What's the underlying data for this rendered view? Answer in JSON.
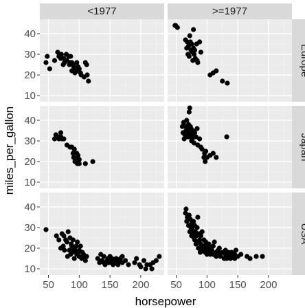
{
  "chart_data": {
    "type": "scatter",
    "xlabel": "horsepower",
    "ylabel": "miles_per_gallon",
    "xlim": [
      36,
      238
    ],
    "ylim": [
      7,
      47
    ],
    "x_ticks": [
      50,
      100,
      150,
      200
    ],
    "y_ticks": [
      10,
      20,
      30,
      40
    ],
    "grid": true,
    "facet_columns": [
      "<1977",
      ">=1977"
    ],
    "facet_rows": [
      "Europe",
      "Japan",
      "USA"
    ],
    "colors": {
      "panel": "#ebebeb",
      "strip": "#d9d9d9",
      "grid_major": "#ffffff",
      "grid_minor": "#f5f5f5",
      "point": "#000000"
    },
    "panels": [
      {
        "column": "<1977",
        "row": "Europe",
        "points": [
          [
            46,
            26
          ],
          [
            48,
            29
          ],
          [
            52,
            23
          ],
          [
            60,
            27
          ],
          [
            65,
            31
          ],
          [
            67,
            29
          ],
          [
            70,
            28
          ],
          [
            71,
            30
          ],
          [
            74,
            25
          ],
          [
            75,
            28
          ],
          [
            76,
            26
          ],
          [
            78,
            27
          ],
          [
            79,
            30
          ],
          [
            80,
            27
          ],
          [
            83,
            29
          ],
          [
            84,
            25
          ],
          [
            85,
            26
          ],
          [
            86,
            29
          ],
          [
            88,
            26
          ],
          [
            88,
            22
          ],
          [
            90,
            25
          ],
          [
            91,
            24
          ],
          [
            93,
            21
          ],
          [
            95,
            23
          ],
          [
            96,
            26
          ],
          [
            97,
            22
          ],
          [
            98,
            24
          ],
          [
            100,
            23
          ],
          [
            102,
            21
          ],
          [
            103,
            20
          ],
          [
            108,
            19
          ],
          [
            110,
            26
          ],
          [
            112,
            25
          ],
          [
            113,
            20
          ],
          [
            115,
            17
          ]
        ]
      },
      {
        "column": ">=1977",
        "row": "Europe",
        "points": [
          [
            48,
            44
          ],
          [
            49,
            44
          ],
          [
            52,
            43
          ],
          [
            65,
            37
          ],
          [
            67,
            33
          ],
          [
            68,
            36
          ],
          [
            69,
            30
          ],
          [
            70,
            34
          ],
          [
            71,
            29
          ],
          [
            73,
            36
          ],
          [
            74,
            32
          ],
          [
            75,
            35
          ],
          [
            76,
            31
          ],
          [
            77,
            27
          ],
          [
            78,
            33
          ],
          [
            79,
            30
          ],
          [
            80,
            32
          ],
          [
            81,
            28
          ],
          [
            83,
            35
          ],
          [
            84,
            27
          ],
          [
            85,
            26
          ],
          [
            88,
            36
          ],
          [
            90,
            31
          ],
          [
            105,
            20
          ],
          [
            110,
            21
          ],
          [
            115,
            22
          ],
          [
            125,
            17
          ],
          [
            133,
            16
          ],
          [
            78,
            42
          ],
          [
            72,
            39
          ]
        ]
      },
      {
        "column": "<1977",
        "row": "Japan",
        "points": [
          [
            60,
            31
          ],
          [
            62,
            33
          ],
          [
            65,
            32
          ],
          [
            67,
            31
          ],
          [
            70,
            32
          ],
          [
            70,
            34
          ],
          [
            72,
            31
          ],
          [
            75,
            31
          ],
          [
            80,
            28
          ],
          [
            85,
            27
          ],
          [
            88,
            27
          ],
          [
            90,
            24
          ],
          [
            91,
            22
          ],
          [
            92,
            26
          ],
          [
            93,
            20
          ],
          [
            95,
            21
          ],
          [
            96,
            24
          ],
          [
            97,
            19
          ],
          [
            98,
            23
          ],
          [
            100,
            19
          ],
          [
            100,
            21
          ],
          [
            110,
            19
          ],
          [
            122,
            20
          ]
        ]
      },
      {
        "column": ">=1977",
        "row": "Japan",
        "points": [
          [
            60,
            37
          ],
          [
            61,
            34
          ],
          [
            62,
            39
          ],
          [
            63,
            31
          ],
          [
            64,
            33
          ],
          [
            65,
            37
          ],
          [
            66,
            35
          ],
          [
            67,
            40
          ],
          [
            68,
            36
          ],
          [
            69,
            32
          ],
          [
            70,
            38
          ],
          [
            70,
            34
          ],
          [
            71,
            44
          ],
          [
            72,
            32
          ],
          [
            73,
            37
          ],
          [
            74,
            36
          ],
          [
            75,
            30
          ],
          [
            75,
            33
          ],
          [
            76,
            31
          ],
          [
            77,
            35
          ],
          [
            78,
            33
          ],
          [
            79,
            29
          ],
          [
            80,
            34
          ],
          [
            82,
            32
          ],
          [
            84,
            36
          ],
          [
            85,
            28
          ],
          [
            88,
            31
          ],
          [
            90,
            27
          ],
          [
            92,
            26
          ],
          [
            95,
            22
          ],
          [
            96,
            24
          ],
          [
            97,
            20
          ],
          [
            98,
            25
          ],
          [
            100,
            22
          ],
          [
            105,
            23
          ],
          [
            110,
            24
          ],
          [
            115,
            22
          ],
          [
            132,
            32
          ],
          [
            72,
            46
          ]
        ]
      },
      {
        "column": "<1977",
        "row": "USA",
        "points": [
          [
            46,
            29
          ],
          [
            63,
            26
          ],
          [
            67,
            24
          ],
          [
            70,
            20
          ],
          [
            72,
            27
          ],
          [
            74,
            21
          ],
          [
            75,
            26
          ],
          [
            76,
            19
          ],
          [
            78,
            24
          ],
          [
            80,
            23
          ],
          [
            81,
            16
          ],
          [
            82,
            28
          ],
          [
            84,
            19
          ],
          [
            85,
            25
          ],
          [
            86,
            17
          ],
          [
            87,
            22
          ],
          [
            88,
            21
          ],
          [
            89,
            18
          ],
          [
            90,
            24
          ],
          [
            91,
            20
          ],
          [
            92,
            15
          ],
          [
            93,
            19
          ],
          [
            95,
            21
          ],
          [
            96,
            17
          ],
          [
            97,
            23
          ],
          [
            98,
            18
          ],
          [
            100,
            19
          ],
          [
            100,
            16
          ],
          [
            102,
            21
          ],
          [
            104,
            15
          ],
          [
            105,
            18
          ],
          [
            107,
            17
          ],
          [
            110,
            16
          ],
          [
            110,
            14
          ],
          [
            112,
            16
          ],
          [
            130,
            15
          ],
          [
            133,
            13
          ],
          [
            135,
            17
          ],
          [
            137,
            14
          ],
          [
            140,
            13
          ],
          [
            140,
            16
          ],
          [
            142,
            12
          ],
          [
            145,
            14
          ],
          [
            147,
            15
          ],
          [
            148,
            13
          ],
          [
            150,
            14
          ],
          [
            150,
            16
          ],
          [
            152,
            13
          ],
          [
            153,
            15
          ],
          [
            155,
            14
          ],
          [
            155,
            12
          ],
          [
            158,
            13
          ],
          [
            160,
            15
          ],
          [
            160,
            14
          ],
          [
            163,
            12
          ],
          [
            165,
            14
          ],
          [
            167,
            15
          ],
          [
            170,
            13
          ],
          [
            170,
            16
          ],
          [
            175,
            14
          ],
          [
            180,
            12
          ],
          [
            190,
            13
          ],
          [
            193,
            15
          ],
          [
            198,
            12
          ],
          [
            200,
            11
          ],
          [
            208,
            10
          ],
          [
            210,
            12
          ],
          [
            215,
            12
          ],
          [
            220,
            13
          ],
          [
            225,
            14
          ],
          [
            230,
            16
          ],
          [
            218,
            10
          ],
          [
            205,
            14
          ]
        ]
      },
      {
        "column": ">=1977",
        "row": "USA",
        "points": [
          [
            65,
            37
          ],
          [
            66,
            39
          ],
          [
            67,
            33
          ],
          [
            68,
            35
          ],
          [
            70,
            31
          ],
          [
            71,
            36
          ],
          [
            72,
            28
          ],
          [
            73,
            34
          ],
          [
            74,
            30
          ],
          [
            75,
            26
          ],
          [
            75,
            32
          ],
          [
            76,
            29
          ],
          [
            77,
            27
          ],
          [
            78,
            33
          ],
          [
            79,
            25
          ],
          [
            80,
            31
          ],
          [
            80,
            24
          ],
          [
            81,
            28
          ],
          [
            82,
            22
          ],
          [
            83,
            26
          ],
          [
            84,
            30
          ],
          [
            85,
            23
          ],
          [
            86,
            20
          ],
          [
            87,
            27
          ],
          [
            88,
            24
          ],
          [
            89,
            18
          ],
          [
            90,
            22
          ],
          [
            90,
            26
          ],
          [
            92,
            20
          ],
          [
            93,
            19
          ],
          [
            95,
            24
          ],
          [
            96,
            21
          ],
          [
            97,
            18
          ],
          [
            98,
            23
          ],
          [
            100,
            20
          ],
          [
            100,
            17
          ],
          [
            102,
            19
          ],
          [
            103,
            22
          ],
          [
            105,
            20
          ],
          [
            105,
            17
          ],
          [
            108,
            19
          ],
          [
            110,
            21
          ],
          [
            110,
            17
          ],
          [
            112,
            23
          ],
          [
            115,
            18
          ],
          [
            115,
            16
          ],
          [
            118,
            19
          ],
          [
            120,
            17
          ],
          [
            120,
            20
          ],
          [
            122,
            16
          ],
          [
            125,
            18
          ],
          [
            128,
            15
          ],
          [
            130,
            17
          ],
          [
            130,
            19
          ],
          [
            132,
            15
          ],
          [
            135,
            16
          ],
          [
            135,
            18
          ],
          [
            137,
            17
          ],
          [
            138,
            15
          ],
          [
            140,
            16
          ],
          [
            140,
            18
          ],
          [
            142,
            16
          ],
          [
            145,
            17
          ],
          [
            145,
            15
          ],
          [
            147,
            19
          ],
          [
            150,
            16
          ],
          [
            155,
            17
          ],
          [
            165,
            16
          ],
          [
            170,
            15
          ],
          [
            180,
            16
          ],
          [
            190,
            16
          ],
          [
            85,
            35
          ],
          [
            92,
            28
          ]
        ]
      }
    ]
  }
}
